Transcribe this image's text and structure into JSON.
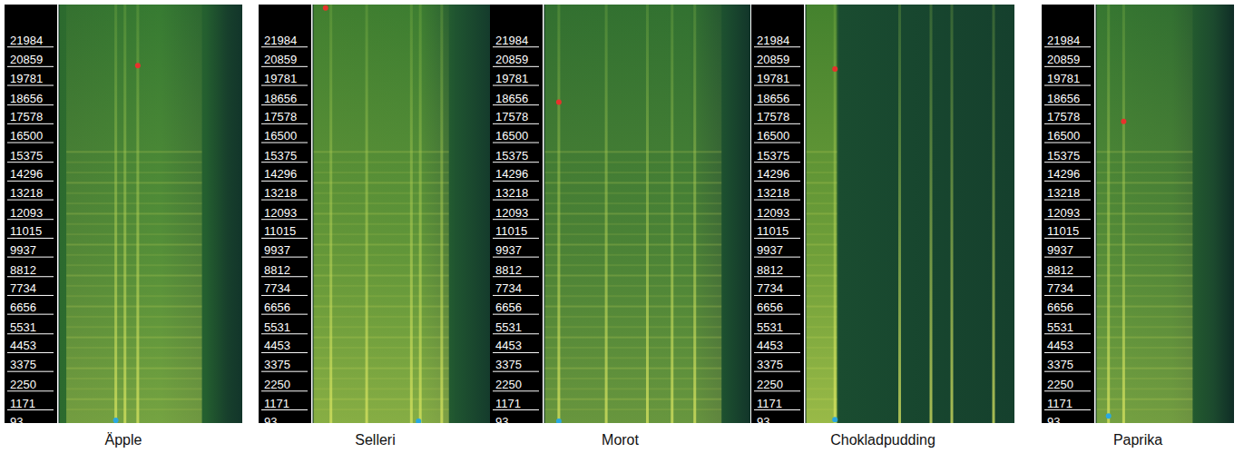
{
  "chart_data": [
    {
      "type": "spectrogram",
      "title": "Äpple",
      "ylim": [
        0,
        24000
      ],
      "xlim": [
        0,
        1
      ],
      "tick_labels": "y",
      "yticks": [
        93,
        1171,
        2250,
        3375,
        4453,
        5531,
        6656,
        7734,
        8812,
        9937,
        11015,
        12093,
        13218,
        14296,
        15375,
        16500,
        17578,
        18656,
        19781,
        20859,
        21984
      ],
      "x": [
        0.43,
        0.31
      ],
      "y": [
        20500,
        150
      ],
      "colors": [
        "#e8322c",
        "#29a8e0"
      ]
    },
    {
      "type": "spectrogram",
      "title": "Selleri",
      "ylim": [
        0,
        24000
      ],
      "xlim": [
        0,
        1
      ],
      "tick_labels": "y",
      "yticks": [
        93,
        1171,
        2250,
        3375,
        4453,
        5531,
        6656,
        7734,
        8812,
        9937,
        11015,
        12093,
        13218,
        14296,
        15375,
        16500,
        17578,
        18656,
        19781,
        20859,
        21984
      ],
      "x": [
        0.07,
        0.59
      ],
      "y": [
        23800,
        100
      ],
      "colors": [
        "#e8322c",
        "#29a8e0"
      ]
    },
    {
      "type": "spectrogram",
      "title": "Morot",
      "ylim": [
        0,
        24000
      ],
      "xlim": [
        0,
        1
      ],
      "tick_labels": "y",
      "yticks": [
        93,
        1171,
        2250,
        3375,
        4453,
        5531,
        6656,
        7734,
        8812,
        9937,
        11015,
        12093,
        13218,
        14296,
        15375,
        16500,
        17578,
        18656,
        19781,
        20859,
        21984
      ],
      "x": [
        0.07,
        0.07
      ],
      "y": [
        18400,
        100
      ],
      "colors": [
        "#e8322c",
        "#29a8e0"
      ]
    },
    {
      "type": "spectrogram",
      "title": "Chokladpudding",
      "ylim": [
        0,
        24000
      ],
      "xlim": [
        0,
        1
      ],
      "tick_labels": "y",
      "yticks": [
        93,
        1171,
        2250,
        3375,
        4453,
        5531,
        6656,
        7734,
        8812,
        9937,
        11015,
        12093,
        13218,
        14296,
        15375,
        16500,
        17578,
        18656,
        19781,
        20859,
        21984
      ],
      "x": [
        0.14,
        0.14
      ],
      "y": [
        20300,
        200
      ],
      "colors": [
        "#e8322c",
        "#29a8e0"
      ]
    },
    {
      "type": "spectrogram",
      "title": "Paprika",
      "ylim": [
        0,
        24000
      ],
      "xlim": [
        0,
        1
      ],
      "tick_labels": "y",
      "yticks": [
        93,
        1171,
        2250,
        3375,
        4453,
        5531,
        6656,
        7734,
        8812,
        9937,
        11015,
        12093,
        13218,
        14296,
        15375,
        16500,
        17578,
        18656,
        19781,
        20859,
        21984
      ],
      "x": [
        0.2,
        0.09
      ],
      "y": [
        17300,
        400
      ],
      "colors": [
        "#e8322c",
        "#29a8e0"
      ]
    }
  ]
}
